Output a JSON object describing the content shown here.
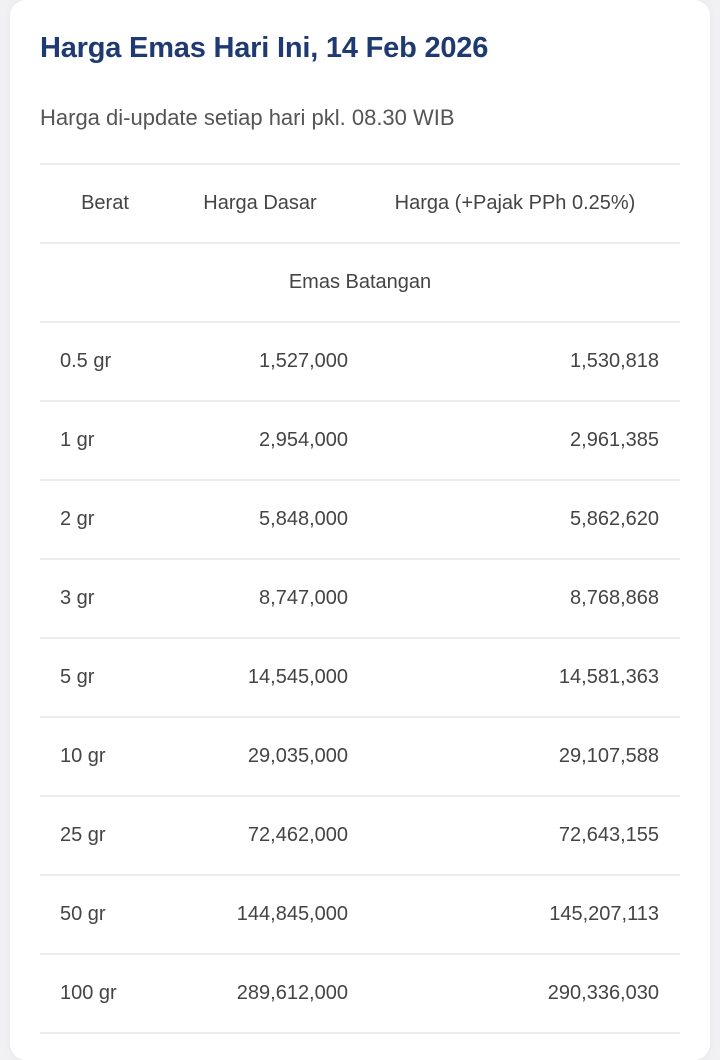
{
  "header": {
    "title": "Harga Emas Hari Ini, 14 Feb 2026",
    "subtitle": "Harga di-update setiap hari pkl. 08.30 WIB"
  },
  "table": {
    "columns": [
      "Berat",
      "Harga Dasar",
      "Harga (+Pajak PPh 0.25%)"
    ],
    "section": "Emas Batangan",
    "rows": [
      {
        "weight": "0.5 gr",
        "base": "1,527,000",
        "taxed": "1,530,818"
      },
      {
        "weight": "1 gr",
        "base": "2,954,000",
        "taxed": "2,961,385"
      },
      {
        "weight": "2 gr",
        "base": "5,848,000",
        "taxed": "5,862,620"
      },
      {
        "weight": "3 gr",
        "base": "8,747,000",
        "taxed": "8,768,868"
      },
      {
        "weight": "5 gr",
        "base": "14,545,000",
        "taxed": "14,581,363"
      },
      {
        "weight": "10 gr",
        "base": "29,035,000",
        "taxed": "29,107,588"
      },
      {
        "weight": "25 gr",
        "base": "72,462,000",
        "taxed": "72,643,155"
      },
      {
        "weight": "50 gr",
        "base": "144,845,000",
        "taxed": "145,207,113"
      },
      {
        "weight": "100 gr",
        "base": "289,612,000",
        "taxed": "290,336,030"
      }
    ]
  },
  "colors": {
    "title": "#1e3a70",
    "text": "#444444",
    "divider": "#ececec"
  }
}
